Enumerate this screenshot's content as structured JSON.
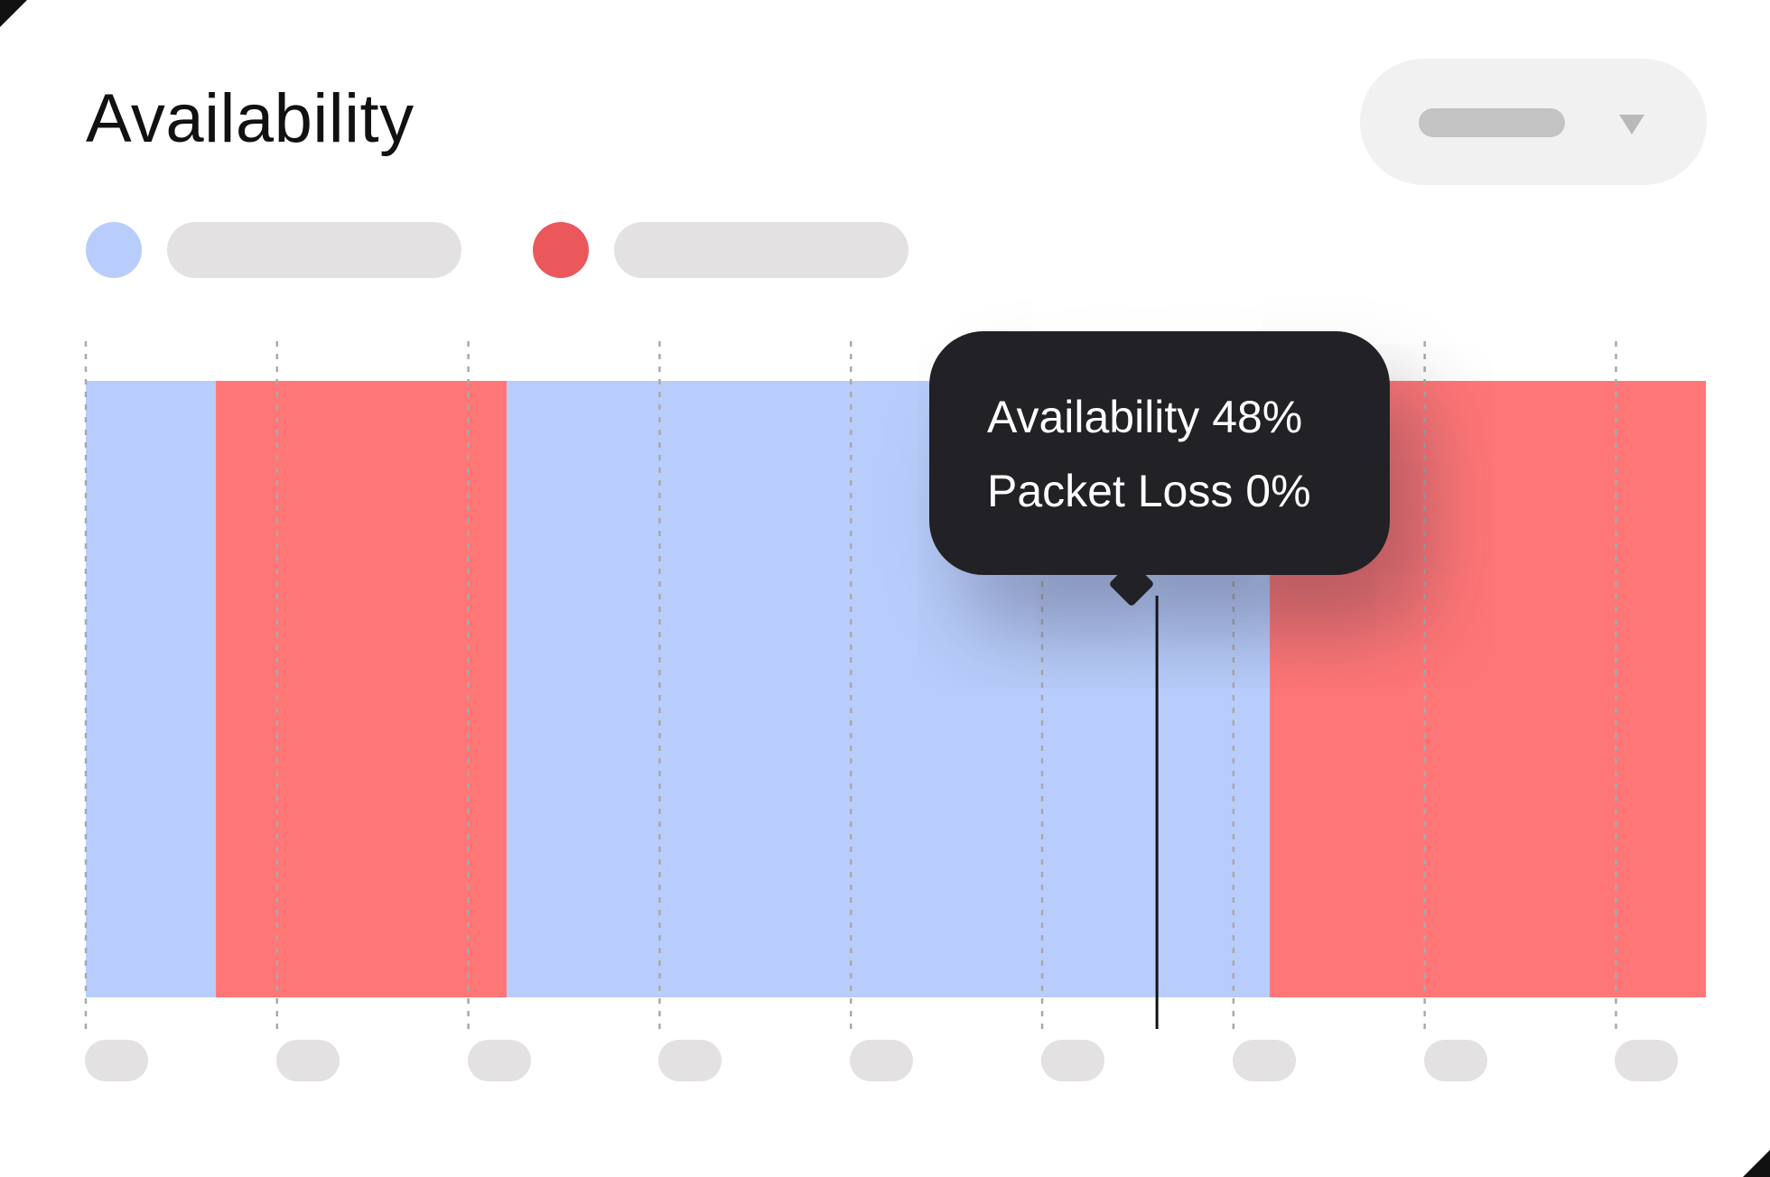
{
  "title": "Availability",
  "colors": {
    "availability": "#b8cdfb",
    "packet_loss": "#ff7676",
    "tooltip_bg": "#222125",
    "placeholder": "#e3e1e2"
  },
  "tooltip": {
    "availability_line": "Availability 48%",
    "packet_loss_line": "Packet Loss 0%"
  },
  "chart_data": {
    "type": "bar",
    "x_range": [
      0,
      8.47
    ],
    "x_ticks": [
      0,
      1,
      2,
      3,
      4,
      5,
      6,
      7,
      8
    ],
    "grid": true,
    "legend": "top-left",
    "segments": [
      {
        "series": "availability",
        "start": 0.0,
        "end": 0.68
      },
      {
        "series": "packet_loss",
        "start": 0.68,
        "end": 2.2
      },
      {
        "series": "availability",
        "start": 2.2,
        "end": 6.19
      },
      {
        "series": "packet_loss",
        "start": 6.19,
        "end": 8.47
      }
    ],
    "cursor_x": 5.6,
    "tooltip_values": {
      "availability": 48,
      "packet_loss": 0
    }
  }
}
